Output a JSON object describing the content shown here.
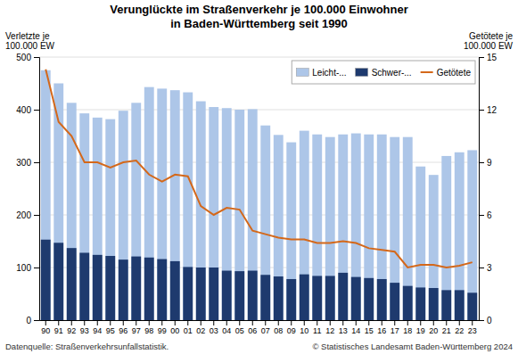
{
  "chart_data": {
    "type": "bar",
    "title": "Verunglückte im Straßenverkehr je 100.000 Einwohner",
    "subtitle": "in Baden-Württemberg seit 1990",
    "ylabel": [
      "Verletzte je",
      "100.000 EW"
    ],
    "y2label": [
      "Getötete je",
      "100.000 EW"
    ],
    "annotations": [
      "Datenquelle: Straßenverkehrsunfallstatistik.",
      "© Statistisches Landesamt Baden-Württemberg 2024"
    ],
    "categories": [
      "90",
      "91",
      "92",
      "93",
      "94",
      "95",
      "96",
      "97",
      "98",
      "99",
      "00",
      "01",
      "02",
      "03",
      "04",
      "05",
      "06",
      "07",
      "08",
      "09",
      "10",
      "11",
      "12",
      "13",
      "14",
      "15",
      "16",
      "17",
      "18",
      "19",
      "20",
      "21",
      "22",
      "23"
    ],
    "series": [
      {
        "name": "Leicht-...",
        "type": "bar",
        "color": "#adc6e8",
        "values": [
          475,
          450,
          413,
          393,
          385,
          382,
          398,
          413,
          443,
          440,
          437,
          433,
          416,
          405,
          403,
          400,
          401,
          370,
          352,
          338,
          360,
          353,
          348,
          353,
          355,
          353,
          353,
          348,
          348,
          292,
          276,
          312,
          319,
          323
        ]
      },
      {
        "name": "Schwer-...",
        "type": "bar",
        "color": "#1e3a6e",
        "values": [
          153,
          147,
          137,
          128,
          124,
          122,
          115,
          121,
          119,
          116,
          112,
          101,
          100,
          100,
          94,
          93,
          94,
          86,
          83,
          78,
          87,
          84,
          84,
          90,
          82,
          80,
          78,
          71,
          65,
          62,
          61,
          57,
          57,
          52
        ]
      },
      {
        "name": "Getötete",
        "type": "line",
        "axis": "y2",
        "color": "#d4681a",
        "values": [
          14.3,
          11.3,
          10.5,
          9.0,
          9.0,
          8.7,
          9.0,
          9.1,
          8.3,
          7.9,
          8.3,
          8.2,
          6.5,
          6.0,
          6.4,
          6.3,
          5.1,
          4.9,
          4.7,
          4.6,
          4.6,
          4.4,
          4.4,
          4.5,
          4.4,
          4.1,
          4.0,
          3.9,
          3.0,
          3.15,
          3.15,
          3.0,
          3.1,
          3.3
        ]
      }
    ],
    "ylim": [
      0,
      500
    ],
    "yticks": [
      0,
      100,
      200,
      300,
      400,
      500
    ],
    "y2lim": [
      0,
      15
    ],
    "y2ticks": [
      0,
      3,
      6,
      9,
      12,
      15
    ],
    "grid": true,
    "legend": "top-right",
    "stacked": false
  }
}
